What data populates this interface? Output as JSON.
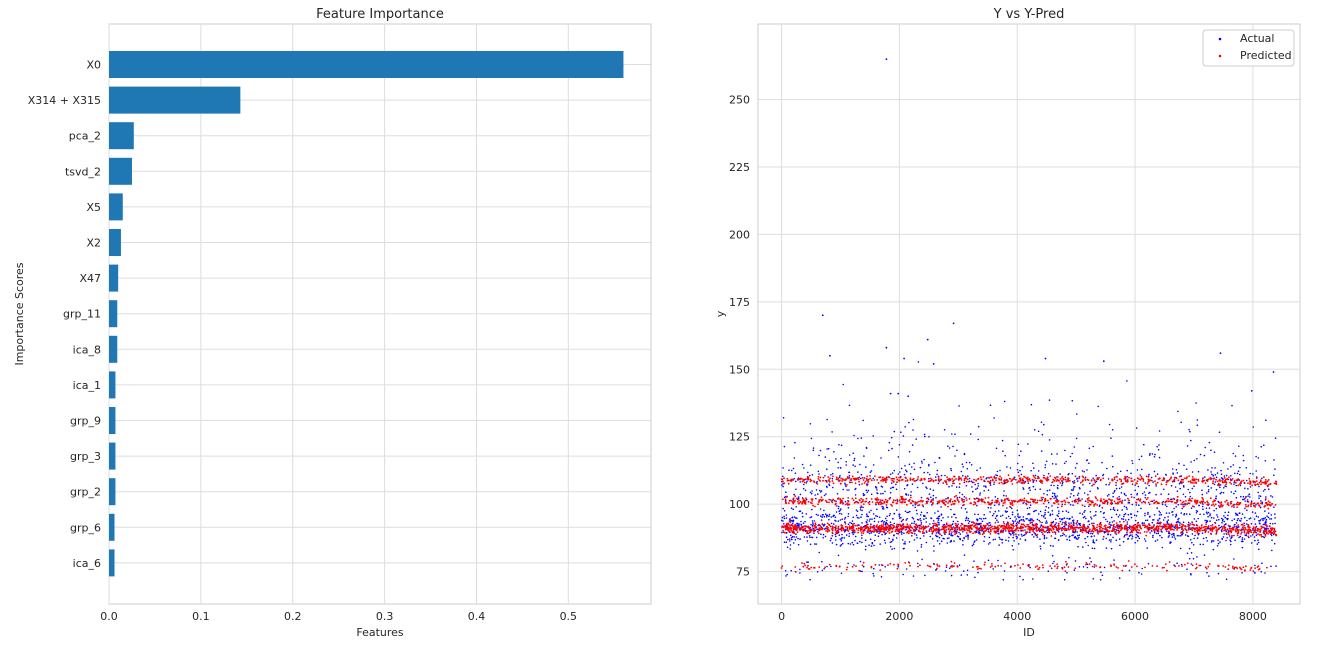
{
  "chart_data": [
    {
      "type": "bar",
      "orientation": "horizontal",
      "title": "Feature Importance",
      "xlabel": "Features",
      "ylabel": "Importance Scores",
      "categories": [
        "X0",
        "X314 + X315",
        "pca_2",
        "tsvd_2",
        "X5",
        "X2",
        "X47",
        "grp_11",
        "ica_8",
        "ica_1",
        "grp_9",
        "grp_3",
        "grp_2",
        "grp_6",
        "ica_6"
      ],
      "values": [
        0.56,
        0.143,
        0.027,
        0.025,
        0.015,
        0.013,
        0.01,
        0.009,
        0.009,
        0.007,
        0.007,
        0.007,
        0.007,
        0.006,
        0.006
      ],
      "xlim": [
        0,
        0.59
      ],
      "xticks": [
        "0.0",
        "0.1",
        "0.2",
        "0.3",
        "0.4",
        "0.5"
      ],
      "color": "#1f77b4",
      "grid": true
    },
    {
      "type": "scatter",
      "title": "Y vs Y-Pred",
      "xlabel": "ID",
      "ylabel": "y",
      "xlim": [
        -400,
        8800
      ],
      "ylim": [
        63,
        278
      ],
      "xticks": [
        0,
        2000,
        4000,
        6000,
        8000
      ],
      "yticks": [
        75,
        100,
        125,
        150,
        175,
        200,
        225,
        250
      ],
      "grid": true,
      "legend_position": "top-right",
      "series": [
        {
          "name": "Actual",
          "color": "#0000ff",
          "approx_points": 4209,
          "outliers": [
            {
              "x": 1780,
              "y": 265
            },
            {
              "x": 700,
              "y": 170
            },
            {
              "x": 2920,
              "y": 167
            },
            {
              "x": 2480,
              "y": 161
            },
            {
              "x": 1780,
              "y": 158
            },
            {
              "x": 7450,
              "y": 156
            },
            {
              "x": 820,
              "y": 155
            },
            {
              "x": 4480,
              "y": 154
            },
            {
              "x": 5470,
              "y": 153
            },
            {
              "x": 2080,
              "y": 154
            },
            {
              "x": 2580,
              "y": 152
            },
            {
              "x": 8350,
              "y": 149
            },
            {
              "x": 7980,
              "y": 142
            },
            {
              "x": 1980,
              "y": 141
            },
            {
              "x": 1850,
              "y": 141
            },
            {
              "x": 2150,
              "y": 140
            }
          ]
        },
        {
          "name": "Predicted",
          "color": "#ff0000",
          "approx_points": 4209,
          "bands": [
            77,
            91,
            101,
            109
          ]
        }
      ]
    }
  ]
}
